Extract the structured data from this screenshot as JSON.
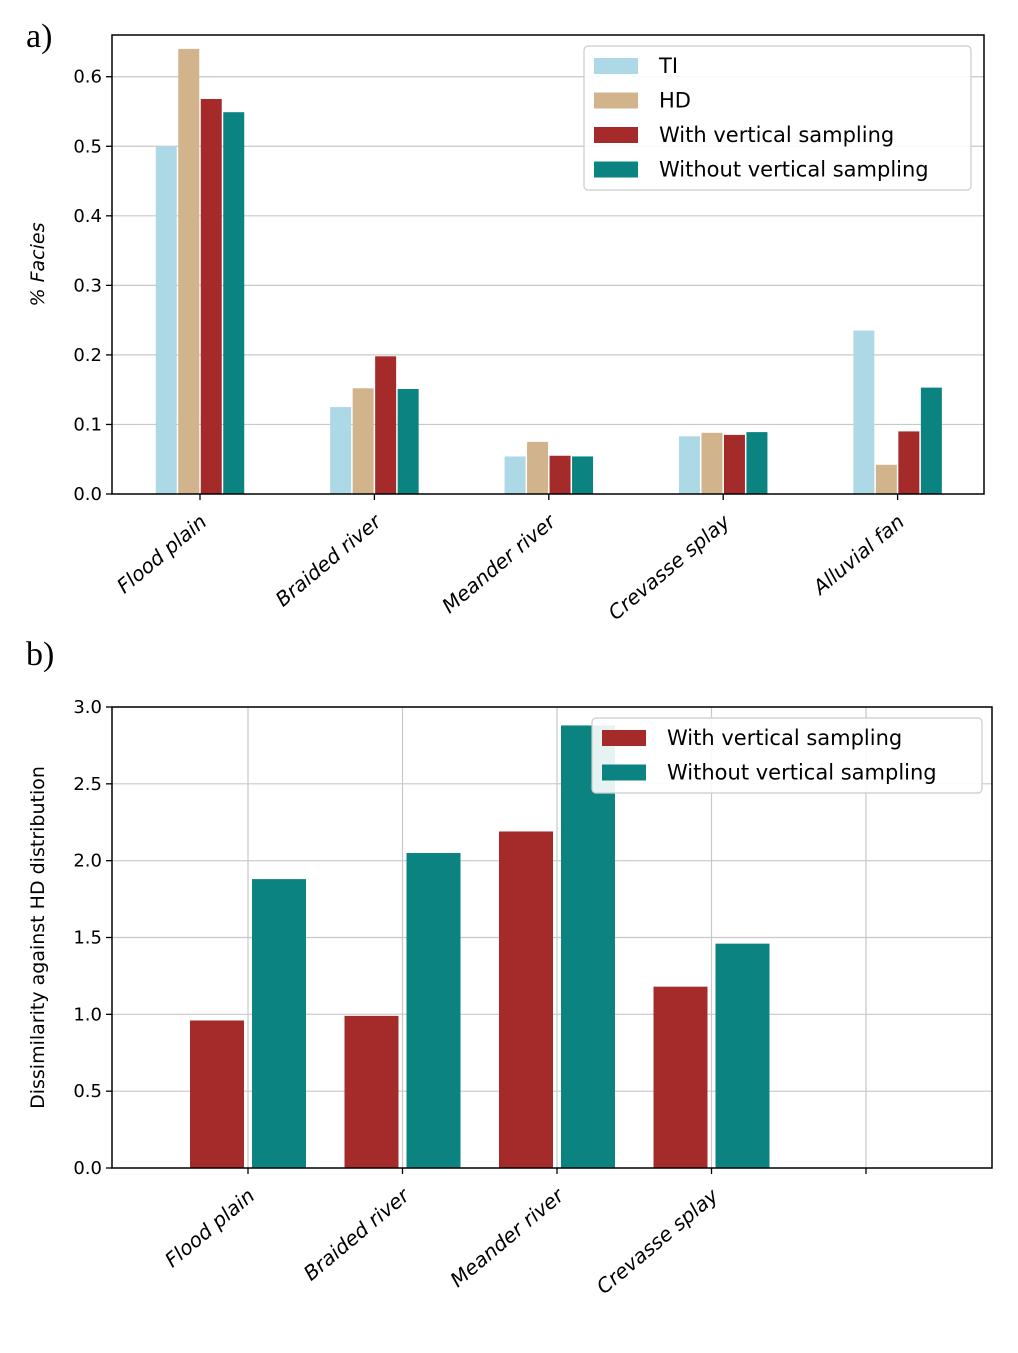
{
  "panels": {
    "a": {
      "label": "a)"
    },
    "b": {
      "label": "b)"
    }
  },
  "chart_data": [
    {
      "type": "bar",
      "ylabel": "% Facies",
      "categories": [
        "Flood plain",
        "Braided river",
        "Meander river",
        "Crevasse splay",
        "Alluvial fan"
      ],
      "ylim": [
        0,
        0.66
      ],
      "yticks": [
        "0.0",
        "0.1",
        "0.2",
        "0.3",
        "0.4",
        "0.5",
        "0.6"
      ],
      "grid": "horizontal",
      "legend_position": "top-right",
      "series": [
        {
          "name": "TI",
          "color": "#add8e6",
          "values": [
            0.5,
            0.125,
            0.054,
            0.083,
            0.235
          ]
        },
        {
          "name": "HD",
          "color": "#d2b48c",
          "values": [
            0.64,
            0.152,
            0.075,
            0.088,
            0.042
          ]
        },
        {
          "name": "With vertical sampling",
          "color": "#a52a2a",
          "values": [
            0.568,
            0.198,
            0.055,
            0.085,
            0.09
          ]
        },
        {
          "name": "Without vertical sampling",
          "color": "#0b8381",
          "values": [
            0.549,
            0.151,
            0.054,
            0.089,
            0.153
          ]
        }
      ]
    },
    {
      "type": "bar",
      "ylabel": "Dissimilarity against HD distribution",
      "categories": [
        "Flood plain",
        "Braided river",
        "Meander river",
        "Crevasse splay",
        ""
      ],
      "ylim": [
        0,
        3.0
      ],
      "yticks": [
        "0.0",
        "0.5",
        "1.0",
        "1.5",
        "2.0",
        "2.5",
        "3.0"
      ],
      "grid": "both",
      "legend_position": "top-right",
      "series": [
        {
          "name": "With vertical sampling",
          "color": "#a52a2a",
          "values": [
            0.96,
            0.99,
            2.19,
            1.18,
            0.0
          ]
        },
        {
          "name": "Without vertical sampling",
          "color": "#0b8381",
          "values": [
            1.88,
            2.05,
            2.88,
            1.46,
            0.0
          ]
        }
      ]
    }
  ]
}
